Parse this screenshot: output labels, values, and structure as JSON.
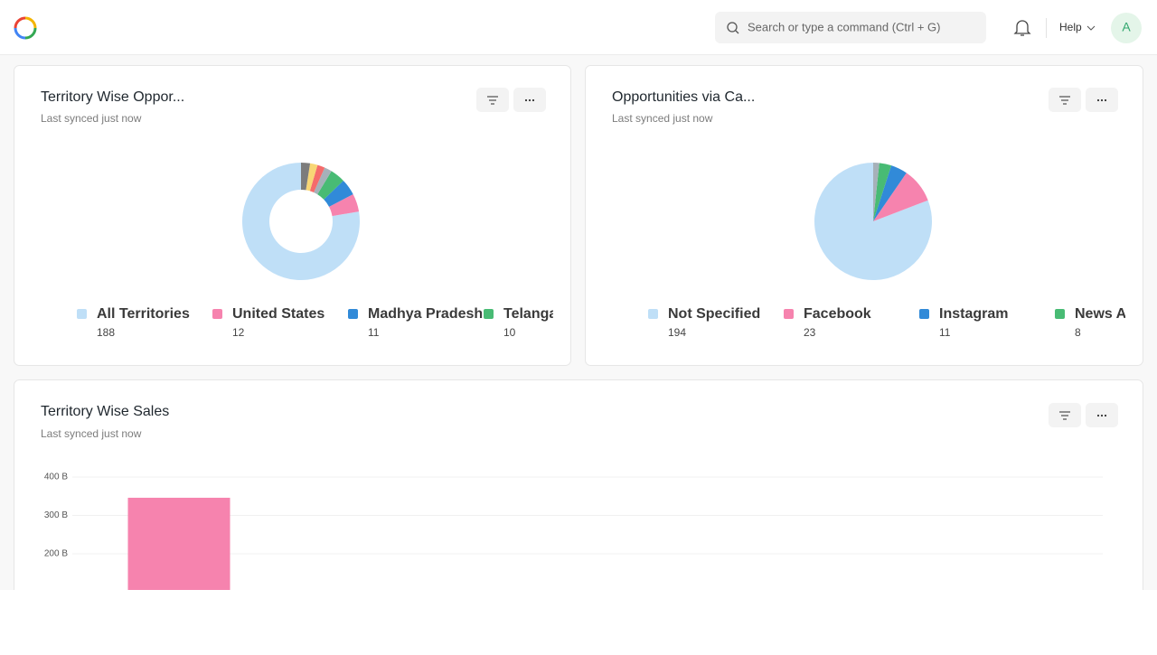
{
  "header": {
    "search_placeholder": "Search or type a command (Ctrl + G)",
    "help": "Help",
    "avatar": "A"
  },
  "chart_data": [
    {
      "type": "donut",
      "title": "Territory Wise Oppor...",
      "subtitle": "Last synced just now",
      "categories": [
        "All Territories",
        "United States",
        "Madhya Pradesh",
        "Telanga",
        null,
        null,
        null,
        null
      ],
      "values": [
        188,
        12,
        11,
        10,
        5,
        5,
        5,
        6
      ],
      "colors": [
        "#bfdff7",
        "#f683ae",
        "#318ad8",
        "#48bb74",
        "#a6b1b9",
        "#f56b6b",
        "#f8d675",
        "#7c7c7c"
      ]
    },
    {
      "type": "pie",
      "title": "Opportunities via Ca...",
      "subtitle": "Last synced just now",
      "categories": [
        "Not Specified",
        "Facebook",
        "Instagram",
        "News A",
        null
      ],
      "values": [
        194,
        23,
        11,
        8,
        4
      ],
      "colors": [
        "#bfdff7",
        "#f683ae",
        "#318ad8",
        "#48bb74",
        "#a6b1b9"
      ]
    },
    {
      "type": "bar",
      "title": "Territory Wise Sales",
      "subtitle": "Last synced just now",
      "categories": [
        null
      ],
      "values": [
        346000000000
      ],
      "color": "#f683ae",
      "ylim": [
        0,
        400000000000
      ],
      "yticks": [
        {
          "value": 200000000000,
          "label": "200 B"
        },
        {
          "value": 300000000000,
          "label": "300 B"
        },
        {
          "value": 400000000000,
          "label": "400 B"
        }
      ],
      "grid": true
    }
  ]
}
